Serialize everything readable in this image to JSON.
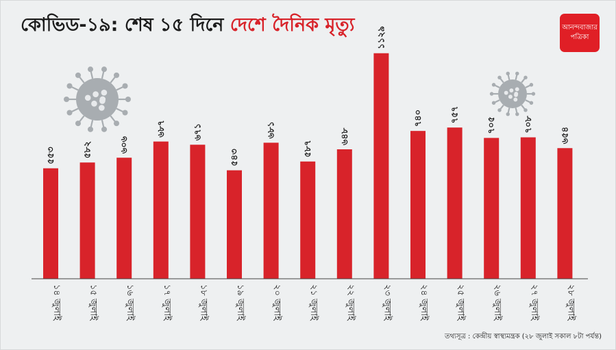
{
  "title": {
    "lead": "কোভিড-১৯: শেষ ১৫ দিনে ",
    "highlight": "দেশে দৈনিক মৃত্যু"
  },
  "logo": {
    "line1": "আনন্দবাজার",
    "line2": "পত্রিকা"
  },
  "source": "তথ্যসূত্র : কেন্দ্রীয় স্বাস্থ্যমন্ত্রক (২৮ জুলাই সকাল ৮টা পর্যন্ত)",
  "colors": {
    "bar": "#d8232a",
    "title_highlight": "#d8232a",
    "logo_bg": "#e01f26",
    "virus": "#a8adb1",
    "axis": "#444444"
  },
  "icons": [
    "virus-icon",
    "virus-icon"
  ],
  "chart_data": {
    "type": "bar",
    "title": "কোভিড-১৯: শেষ ১৫ দিনে দেশে দৈনিক মৃত্যু",
    "xlabel": "",
    "ylabel": "",
    "ylim": [
      0,
      1200
    ],
    "grid": false,
    "legend": "none",
    "categories": [
      "১৪ জুলাই",
      "১৫ জুলাই",
      "১৬ জুলাই",
      "১৭ জুলাই",
      "১৮ জুলাই",
      "১৯ জুলাই",
      "২০ জুলাই",
      "২১ জুলাই",
      "২২ জুলাই",
      "২৩ জুলাই",
      "২৪ জুলাই",
      "২৫ জুলাই",
      "২৬ জুলাই",
      "২৭ জুলাই",
      "২৮ জুলাই"
    ],
    "values": [
      553,
      582,
      606,
      687,
      671,
      543,
      681,
      587,
      648,
      1129,
      740,
      757,
      705,
      708,
      654
    ],
    "value_labels": [
      "৫৫৩",
      "৫৮২",
      "৬০৬",
      "৬৮৭",
      "৬৭১",
      "৫৪৩",
      "৬৮১",
      "৫৮৭",
      "৬৪৮",
      "১১২৯",
      "৭৪০",
      "৭৫৭",
      "৭০৫",
      "৭০৮",
      "৬৫৪"
    ]
  }
}
